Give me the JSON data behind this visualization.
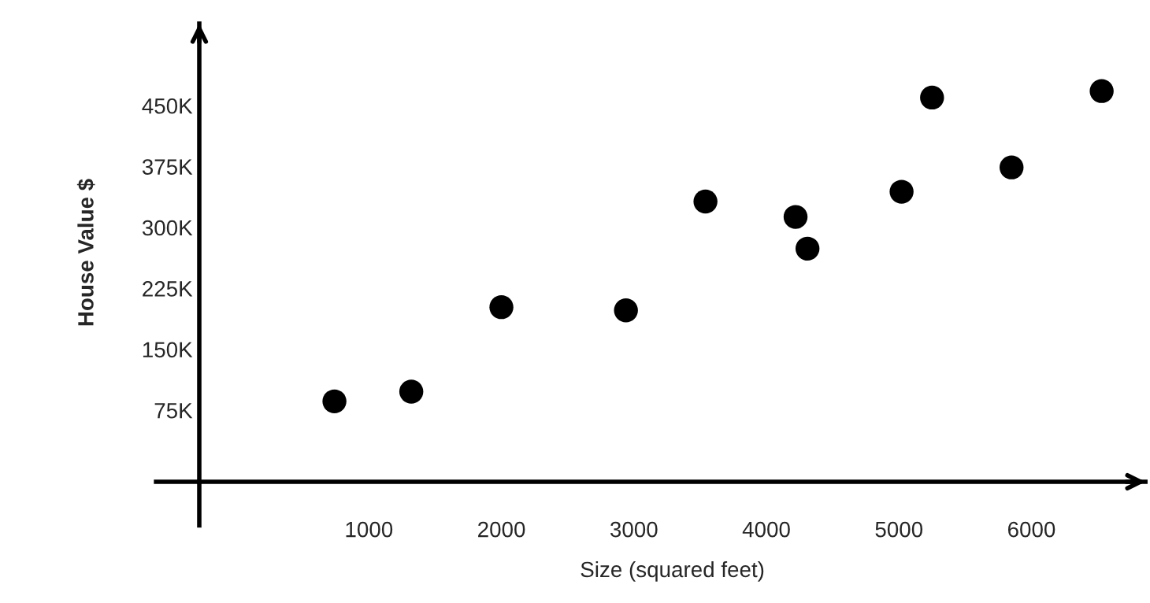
{
  "chart_data": {
    "type": "scatter",
    "xlabel": "Size (squared feet)",
    "ylabel": "House Value $",
    "x": [
      740,
      1320,
      2000,
      2940,
      3540,
      4220,
      4310,
      5020,
      5250,
      5850,
      6530
    ],
    "values": [
      86000,
      98000,
      202000,
      198000,
      332000,
      313000,
      274000,
      344000,
      460000,
      374000,
      468000
    ],
    "color": "#000000",
    "marker": "circle",
    "grid": false,
    "xlim": [
      -280,
      6860
    ],
    "ylim": [
      -13000,
      551000
    ],
    "xticks": [
      1000,
      2000,
      3000,
      4000,
      5000,
      6000
    ],
    "yticks": [
      {
        "value": 75000,
        "label": "75K"
      },
      {
        "value": 150000,
        "label": "150K"
      },
      {
        "value": 225000,
        "label": "225K"
      },
      {
        "value": 300000,
        "label": "300K"
      },
      {
        "value": 375000,
        "label": "375K"
      },
      {
        "value": 450000,
        "label": "450K"
      }
    ]
  }
}
